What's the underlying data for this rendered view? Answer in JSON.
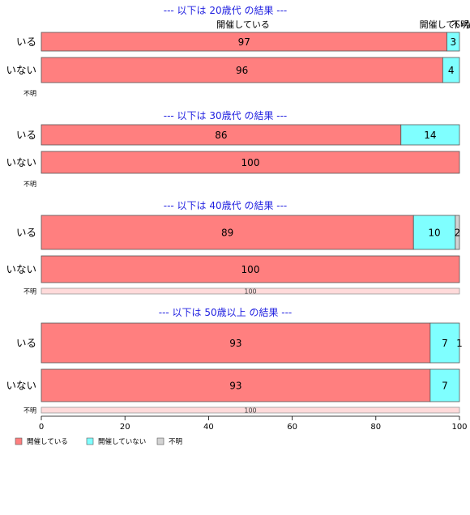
{
  "chart_data": {
    "type": "bar",
    "orientation": "horizontal",
    "stacked": true,
    "legend": {
      "placement": "bottom-left",
      "entries": [
        {
          "name": "開催している",
          "color": "#ff7f7f"
        },
        {
          "name": "開催していない",
          "color": "#7fffff"
        },
        {
          "name": "不明",
          "color": "#d3d3d3"
        }
      ]
    },
    "xlim": [
      0,
      100
    ],
    "xticks": [
      0,
      20,
      40,
      60,
      80,
      100
    ],
    "top_labels": [
      "開催している",
      "開催していない",
      "不明"
    ],
    "panels": [
      {
        "title": "--- 以下は 20歳代 の結果 ---",
        "rows": [
          {
            "label": "いる",
            "values": [
              97,
              3,
              0
            ],
            "labels": [
              "97",
              "3",
              ""
            ]
          },
          {
            "label": "いない",
            "values": [
              96,
              4,
              0
            ],
            "labels": [
              "96",
              "4",
              ""
            ]
          },
          {
            "label": "不明",
            "values": [
              0,
              0,
              0
            ],
            "labels": [
              "",
              "",
              ""
            ]
          }
        ]
      },
      {
        "title": "--- 以下は 30歳代 の結果 ---",
        "rows": [
          {
            "label": "いる",
            "values": [
              86,
              14,
              0
            ],
            "labels": [
              "86",
              "14",
              ""
            ]
          },
          {
            "label": "いない",
            "values": [
              100,
              0,
              0
            ],
            "labels": [
              "100",
              "",
              ""
            ]
          },
          {
            "label": "不明",
            "values": [
              0,
              0,
              0
            ],
            "labels": [
              "",
              "",
              ""
            ]
          }
        ]
      },
      {
        "title": "--- 以下は 40歳代 の結果 ---",
        "rows": [
          {
            "label": "いる",
            "values": [
              89,
              10,
              2
            ],
            "labels": [
              "89",
              "10",
              "2"
            ]
          },
          {
            "label": "いない",
            "values": [
              100,
              0,
              0
            ],
            "labels": [
              "100",
              "",
              ""
            ]
          },
          {
            "label": "不明",
            "values": [
              100,
              0,
              0
            ],
            "labels": [
              "100",
              "",
              ""
            ]
          }
        ]
      },
      {
        "title": "--- 以下は 50歳以上 の結果 ---",
        "rows": [
          {
            "label": "いる",
            "values": [
              93,
              7,
              1
            ],
            "labels": [
              "93",
              "7",
              "1"
            ]
          },
          {
            "label": "いない",
            "values": [
              93,
              7,
              0
            ],
            "labels": [
              "93",
              "7",
              ""
            ]
          },
          {
            "label": "不明",
            "values": [
              100,
              0,
              0
            ],
            "labels": [
              "100",
              "",
              ""
            ]
          }
        ]
      }
    ]
  }
}
